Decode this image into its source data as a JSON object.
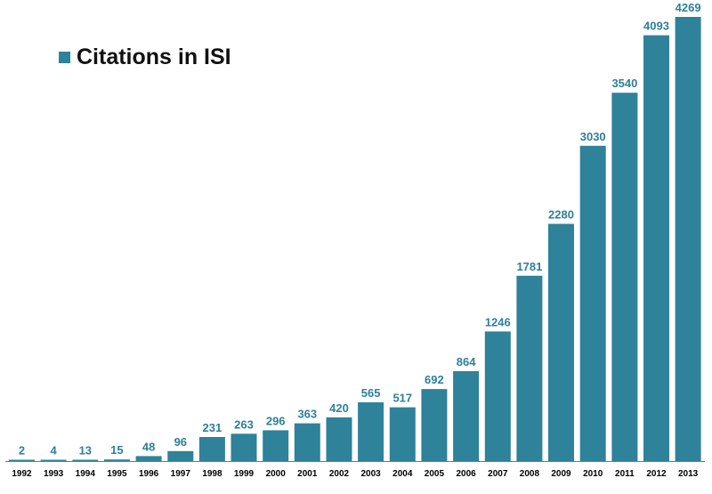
{
  "chart_data": {
    "type": "bar",
    "categories": [
      "1992",
      "1993",
      "1994",
      "1995",
      "1996",
      "1997",
      "1998",
      "1999",
      "2000",
      "2001",
      "2002",
      "2003",
      "2004",
      "2005",
      "2006",
      "2007",
      "2008",
      "2009",
      "2010",
      "2011",
      "2012",
      "2013"
    ],
    "series": [
      {
        "name": "Citations in ISI",
        "values": [
          2,
          4,
          13,
          15,
          48,
          96,
          231,
          263,
          296,
          363,
          420,
          565,
          517,
          692,
          864,
          1246,
          1781,
          2280,
          3030,
          3540,
          4093,
          4269
        ]
      }
    ],
    "data_labels": [
      "2",
      "4",
      "13",
      "15",
      "48",
      "96",
      "231",
      "263",
      "296",
      "363",
      "420",
      "565",
      "517",
      "692",
      "864",
      "1246",
      "1781",
      "2280",
      "3030",
      "3540",
      "4093",
      "4269"
    ],
    "legend": {
      "label": "Citations in ISI",
      "position": "top-left"
    },
    "ylim": [
      0,
      4269
    ],
    "grid": false,
    "colors": {
      "bar": "#2e8299",
      "label": "#2e7f99",
      "axis": "#777777"
    }
  }
}
